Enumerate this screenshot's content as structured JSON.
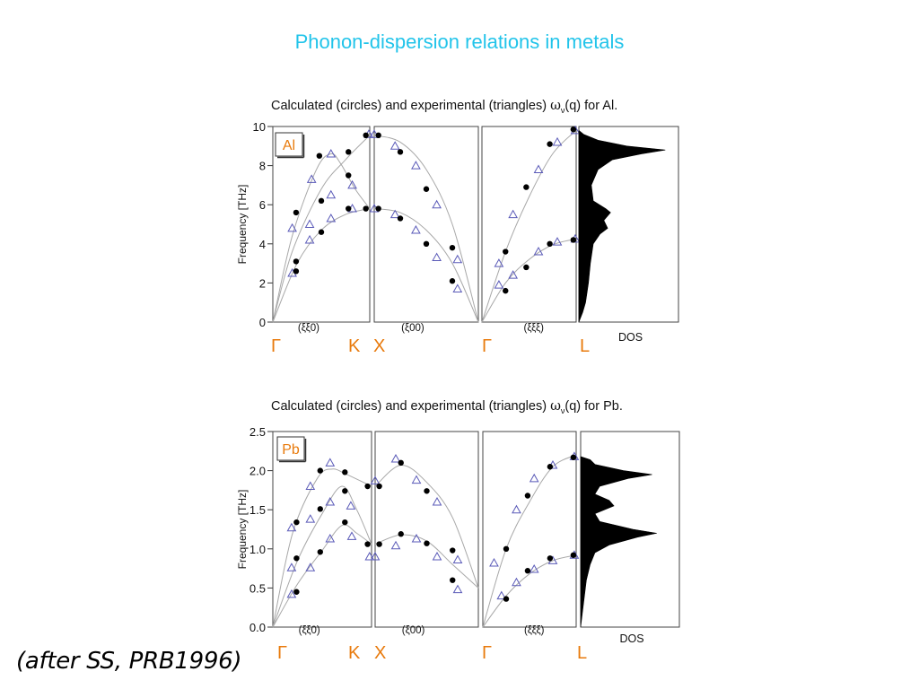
{
  "slide": {
    "title": "Phonon-dispersion relations in metals",
    "credit": "(after SS, PRB1996)"
  },
  "styles": {
    "title_color": "#22c4ea",
    "point_label_color": "#e87a0c",
    "triangle_color": "#5a5ab8",
    "curve_color": "#a8a8a8",
    "dot_color": "#000000"
  },
  "chart_data": [
    {
      "type": "line",
      "material": "Al",
      "caption_before": "Calculated (circles) and experimental (triangles) ",
      "caption_omega": "ω",
      "caption_sub": "ν",
      "caption_after": "(q) for Al.",
      "ylabel": "Frequency [THz]",
      "ylim": [
        0,
        10
      ],
      "yticks": [
        "0",
        "2",
        "4",
        "6",
        "8",
        "10"
      ],
      "ytick_values": [
        0,
        2,
        4,
        6,
        8,
        10
      ],
      "points": [
        "Γ",
        "K",
        "X",
        "Γ",
        "L"
      ],
      "directions": [
        "(ξξ0)",
        "(ξ00)",
        "(ξξξ)"
      ],
      "dos_label": "DOS",
      "panels": [
        {
          "xlim": [
            0,
            1
          ],
          "branches": [
            [
              [
                0,
                0
              ],
              [
                0.2,
                3.6
              ],
              [
                0.5,
                6.8
              ],
              [
                0.75,
                8.3
              ],
              [
                1.0,
                9.55
              ]
            ],
            [
              [
                0,
                0
              ],
              [
                0.2,
                4.4
              ],
              [
                0.45,
                7.8
              ],
              [
                0.6,
                8.6
              ],
              [
                0.7,
                8.1
              ],
              [
                0.85,
                6.8
              ],
              [
                1.0,
                5.8
              ]
            ],
            [
              [
                0,
                0
              ],
              [
                0.25,
                3.0
              ],
              [
                0.5,
                4.7
              ],
              [
                0.75,
                5.5
              ],
              [
                1.0,
                5.8
              ]
            ]
          ],
          "calculated": [
            [
              0.24,
              2.6
            ],
            [
              0.24,
              3.1
            ],
            [
              0.24,
              5.6
            ],
            [
              0.5,
              6.2
            ],
            [
              0.5,
              4.6
            ],
            [
              0.48,
              8.5
            ],
            [
              0.78,
              8.7
            ],
            [
              0.78,
              7.5
            ],
            [
              0.78,
              5.8
            ],
            [
              0.96,
              9.55
            ],
            [
              0.96,
              5.8
            ]
          ],
          "experimental": [
            [
              0.2,
              2.5
            ],
            [
              0.2,
              4.8
            ],
            [
              0.38,
              5.0
            ],
            [
              0.38,
              4.2
            ],
            [
              0.4,
              7.3
            ],
            [
              0.6,
              8.6
            ],
            [
              0.6,
              6.5
            ],
            [
              0.6,
              5.3
            ],
            [
              0.82,
              7.0
            ],
            [
              0.82,
              5.8
            ],
            [
              0.99,
              9.6
            ]
          ]
        },
        {
          "xlim": [
            0,
            1
          ],
          "branches": [
            [
              [
                0,
                9.55
              ],
              [
                0.25,
                9.2
              ],
              [
                0.5,
                7.8
              ],
              [
                0.75,
                5.0
              ],
              [
                1.0,
                0
              ]
            ],
            [
              [
                0,
                5.8
              ],
              [
                0.25,
                5.6
              ],
              [
                0.5,
                4.7
              ],
              [
                0.75,
                3.0
              ],
              [
                1.0,
                0
              ]
            ]
          ],
          "calculated": [
            [
              0.04,
              9.55
            ],
            [
              0.04,
              5.8
            ],
            [
              0.25,
              8.7
            ],
            [
              0.25,
              5.3
            ],
            [
              0.5,
              6.8
            ],
            [
              0.5,
              4.0
            ],
            [
              0.75,
              3.8
            ],
            [
              0.75,
              2.1
            ]
          ],
          "experimental": [
            [
              0.0,
              9.6
            ],
            [
              0.0,
              5.8
            ],
            [
              0.2,
              9.0
            ],
            [
              0.2,
              5.5
            ],
            [
              0.4,
              8.0
            ],
            [
              0.4,
              4.7
            ],
            [
              0.6,
              6.0
            ],
            [
              0.6,
              3.3
            ],
            [
              0.8,
              3.2
            ],
            [
              0.8,
              1.7
            ]
          ]
        },
        {
          "xlim": [
            0,
            1
          ],
          "branches": [
            [
              [
                0,
                0
              ],
              [
                0.25,
                3.6
              ],
              [
                0.5,
                6.4
              ],
              [
                0.75,
                8.6
              ],
              [
                1.0,
                9.8
              ]
            ],
            [
              [
                0,
                0
              ],
              [
                0.25,
                2.0
              ],
              [
                0.5,
                3.2
              ],
              [
                0.75,
                3.95
              ],
              [
                1.0,
                4.25
              ]
            ]
          ],
          "calculated": [
            [
              0.25,
              3.6
            ],
            [
              0.25,
              1.6
            ],
            [
              0.47,
              6.9
            ],
            [
              0.47,
              2.8
            ],
            [
              0.72,
              9.1
            ],
            [
              0.72,
              4.0
            ],
            [
              0.97,
              9.85
            ],
            [
              0.97,
              4.2
            ]
          ],
          "experimental": [
            [
              0.18,
              3.0
            ],
            [
              0.18,
              1.9
            ],
            [
              0.33,
              5.5
            ],
            [
              0.33,
              2.4
            ],
            [
              0.6,
              7.8
            ],
            [
              0.6,
              3.6
            ],
            [
              0.8,
              9.2
            ],
            [
              0.8,
              4.1
            ],
            [
              0.99,
              9.8
            ],
            [
              0.99,
              4.25
            ]
          ]
        }
      ],
      "dos": {
        "max_frequency": 10,
        "profile": [
          [
            0,
            0
          ],
          [
            0.5,
            0.04
          ],
          [
            1.0,
            0.07
          ],
          [
            2.0,
            0.1
          ],
          [
            3.0,
            0.12
          ],
          [
            4.0,
            0.15
          ],
          [
            4.5,
            0.22
          ],
          [
            4.8,
            0.3
          ],
          [
            5.2,
            0.26
          ],
          [
            5.6,
            0.33
          ],
          [
            5.8,
            0.28
          ],
          [
            6.2,
            0.15
          ],
          [
            7.0,
            0.13
          ],
          [
            7.8,
            0.2
          ],
          [
            8.3,
            0.35
          ],
          [
            8.6,
            0.65
          ],
          [
            8.8,
            0.9
          ],
          [
            9.0,
            0.5
          ],
          [
            9.3,
            0.2
          ],
          [
            9.6,
            0.05
          ],
          [
            9.8,
            0
          ]
        ]
      }
    },
    {
      "type": "line",
      "material": "Pb",
      "caption_before": "Calculated (circles) and experimental (triangles) ",
      "caption_omega": "ω",
      "caption_sub": "ν",
      "caption_after": "(q) for Pb.",
      "ylabel": "Frequency [THz]",
      "ylim": [
        0,
        2.5
      ],
      "yticks": [
        "0.0",
        "0.5",
        "1.0",
        "1.5",
        "2.0",
        "2.5"
      ],
      "ytick_values": [
        0,
        0.5,
        1.0,
        1.5,
        2.0,
        2.5
      ],
      "points": [
        "Γ",
        "K",
        "X",
        "Γ",
        "L"
      ],
      "directions": [
        "(ξξ0)",
        "(ξ00)",
        "(ξξξ)"
      ],
      "dos_label": "DOS",
      "panels": [
        {
          "xlim": [
            0,
            1
          ],
          "branches": [
            [
              [
                0,
                0
              ],
              [
                0.2,
                1.2
              ],
              [
                0.45,
                1.9
              ],
              [
                0.6,
                2.02
              ],
              [
                0.75,
                1.95
              ],
              [
                1.0,
                1.8
              ]
            ],
            [
              [
                0,
                0
              ],
              [
                0.25,
                0.85
              ],
              [
                0.5,
                1.45
              ],
              [
                0.7,
                1.8
              ],
              [
                0.85,
                1.5
              ],
              [
                1.0,
                1.06
              ]
            ],
            [
              [
                0,
                0
              ],
              [
                0.25,
                0.55
              ],
              [
                0.5,
                0.98
              ],
              [
                0.7,
                1.3
              ],
              [
                0.85,
                1.2
              ],
              [
                1.0,
                1.06
              ]
            ]
          ],
          "calculated": [
            [
              0.24,
              0.45
            ],
            [
              0.24,
              0.88
            ],
            [
              0.24,
              1.34
            ],
            [
              0.48,
              0.96
            ],
            [
              0.48,
              1.51
            ],
            [
              0.48,
              2.0
            ],
            [
              0.73,
              1.34
            ],
            [
              0.73,
              1.74
            ],
            [
              0.73,
              1.98
            ],
            [
              0.96,
              1.06
            ],
            [
              0.96,
              1.8
            ]
          ],
          "experimental": [
            [
              0.19,
              0.42
            ],
            [
              0.19,
              0.76
            ],
            [
              0.19,
              1.27
            ],
            [
              0.38,
              0.76
            ],
            [
              0.38,
              1.38
            ],
            [
              0.38,
              1.8
            ],
            [
              0.58,
              1.13
            ],
            [
              0.58,
              1.6
            ],
            [
              0.58,
              2.1
            ],
            [
              0.79,
              1.55
            ],
            [
              0.8,
              1.16
            ],
            [
              0.98,
              0.9
            ]
          ]
        },
        {
          "xlim": [
            0,
            1
          ],
          "branches": [
            [
              [
                0,
                1.8
              ],
              [
                0.25,
                2.07
              ],
              [
                0.5,
                1.85
              ],
              [
                0.75,
                1.4
              ],
              [
                1.0,
                0.5
              ]
            ],
            [
              [
                0,
                1.06
              ],
              [
                0.25,
                1.18
              ],
              [
                0.5,
                1.1
              ],
              [
                0.75,
                0.8
              ],
              [
                1.0,
                0.5
              ]
            ]
          ],
          "calculated": [
            [
              0.04,
              1.8
            ],
            [
              0.04,
              1.06
            ],
            [
              0.25,
              2.1
            ],
            [
              0.25,
              1.19
            ],
            [
              0.5,
              1.74
            ],
            [
              0.5,
              1.07
            ],
            [
              0.75,
              0.98
            ],
            [
              0.75,
              0.6
            ]
          ],
          "experimental": [
            [
              0.0,
              1.87
            ],
            [
              0.0,
              0.9
            ],
            [
              0.2,
              2.15
            ],
            [
              0.2,
              1.04
            ],
            [
              0.4,
              1.88
            ],
            [
              0.4,
              1.13
            ],
            [
              0.6,
              1.6
            ],
            [
              0.6,
              0.9
            ],
            [
              0.8,
              0.86
            ],
            [
              0.8,
              0.48
            ]
          ]
        },
        {
          "xlim": [
            0,
            1
          ],
          "branches": [
            [
              [
                0,
                0
              ],
              [
                0.25,
                1.0
              ],
              [
                0.5,
                1.6
              ],
              [
                0.75,
                2.05
              ],
              [
                1.0,
                2.2
              ]
            ],
            [
              [
                0,
                0
              ],
              [
                0.25,
                0.4
              ],
              [
                0.5,
                0.68
              ],
              [
                0.75,
                0.85
              ],
              [
                1.0,
                0.92
              ]
            ]
          ],
          "calculated": [
            [
              0.25,
              0.36
            ],
            [
              0.25,
              1.0
            ],
            [
              0.48,
              0.72
            ],
            [
              0.48,
              1.68
            ],
            [
              0.72,
              0.88
            ],
            [
              0.72,
              2.05
            ],
            [
              0.97,
              0.92
            ],
            [
              0.97,
              2.17
            ]
          ],
          "experimental": [
            [
              0.12,
              0.82
            ],
            [
              0.2,
              0.4
            ],
            [
              0.36,
              1.5
            ],
            [
              0.36,
              0.57
            ],
            [
              0.55,
              0.74
            ],
            [
              0.55,
              1.9
            ],
            [
              0.75,
              0.85
            ],
            [
              0.75,
              2.07
            ],
            [
              0.98,
              0.92
            ],
            [
              0.98,
              2.18
            ]
          ]
        }
      ],
      "dos": {
        "max_frequency": 2.2,
        "profile": [
          [
            0,
            0
          ],
          [
            0.3,
            0.03
          ],
          [
            0.6,
            0.06
          ],
          [
            0.8,
            0.1
          ],
          [
            0.95,
            0.15
          ],
          [
            1.05,
            0.3
          ],
          [
            1.15,
            0.6
          ],
          [
            1.2,
            0.8
          ],
          [
            1.25,
            0.55
          ],
          [
            1.35,
            0.2
          ],
          [
            1.45,
            0.15
          ],
          [
            1.55,
            0.35
          ],
          [
            1.62,
            0.3
          ],
          [
            1.7,
            0.15
          ],
          [
            1.8,
            0.2
          ],
          [
            1.9,
            0.5
          ],
          [
            1.95,
            0.75
          ],
          [
            2.0,
            0.45
          ],
          [
            2.08,
            0.15
          ],
          [
            2.14,
            0.1
          ],
          [
            2.18,
            0
          ]
        ]
      }
    }
  ]
}
